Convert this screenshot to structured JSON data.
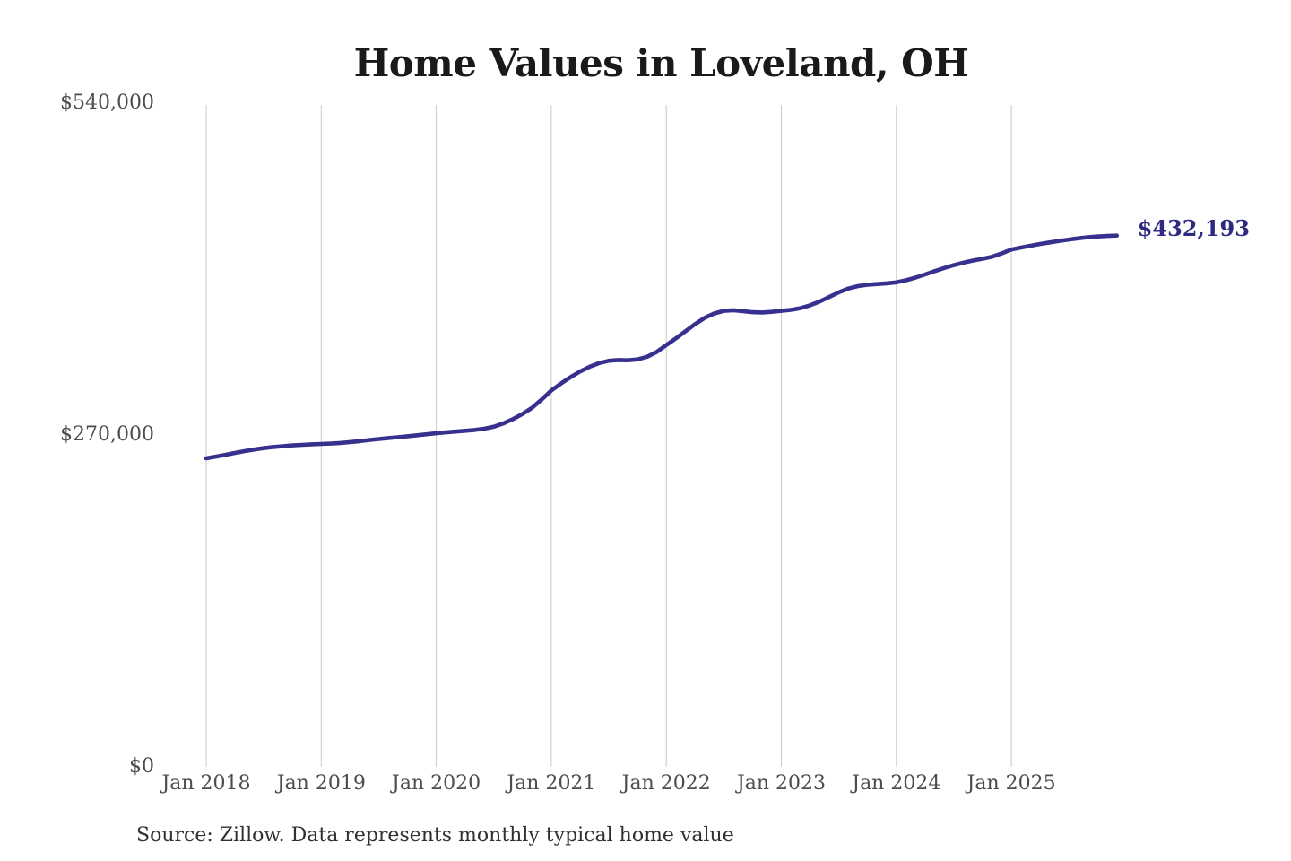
{
  "chart_data": {
    "type": "line",
    "title": "Home Values in Loveland, OH",
    "subtitle": "",
    "unit": "USD",
    "x_interval": "monthly",
    "x_start": "Jan 2018",
    "x_end": "Dec 2025",
    "ylim": [
      0,
      540000
    ],
    "grid": "vertical-only",
    "legend": "none",
    "x_tick_labels": [
      "Jan 2018",
      "Jan 2019",
      "Jan 2020",
      "Jan 2021",
      "Jan 2022",
      "Jan 2023",
      "Jan 2024",
      "Jan 2025"
    ],
    "y_ticks": [
      {
        "label": "$0",
        "value": 0
      },
      {
        "label": "$270,000",
        "value": 270000
      },
      {
        "label": "$540,000",
        "value": 540000
      }
    ],
    "series": [
      {
        "year": 2018,
        "values": [
          251000,
          252400,
          253900,
          255400,
          256900,
          258200,
          259300,
          260200,
          260900,
          261500,
          262000,
          262400
        ]
      },
      {
        "year": 2019,
        "values": [
          262700,
          263000,
          263500,
          264200,
          265000,
          265900,
          266700,
          267500,
          268200,
          269000,
          269800,
          270600
        ]
      },
      {
        "year": 2020,
        "values": [
          271400,
          272100,
          272800,
          273400,
          274100,
          275100,
          276700,
          279400,
          282900,
          287100,
          292100,
          298900
        ]
      },
      {
        "year": 2021,
        "values": [
          306200,
          311800,
          317000,
          321700,
          325500,
          328500,
          330400,
          331000,
          330800,
          331500,
          333600,
          337600
        ]
      },
      {
        "year": 2022,
        "values": [
          343100,
          348600,
          354400,
          360200,
          365300,
          368900,
          371000,
          371500,
          370800,
          369900,
          369700,
          370200
        ]
      },
      {
        "year": 2023,
        "values": [
          371000,
          371800,
          373200,
          375500,
          378600,
          382300,
          386100,
          389200,
          391100,
          392200,
          392800,
          393400
        ]
      },
      {
        "year": 2024,
        "values": [
          394200,
          395900,
          398100,
          400600,
          403300,
          405900,
          408200,
          410200,
          411900,
          413400,
          415100,
          417800
        ]
      },
      {
        "year": 2025,
        "values": [
          420900,
          422500,
          424000,
          425400,
          426700,
          427900,
          429000,
          430000,
          430900,
          431500,
          431900,
          432193
        ]
      }
    ],
    "latest_value": 432193,
    "latest_value_label": "$432,193",
    "source": "Source: Zillow. Data represents monthly typical home value",
    "line_color": "#38308f",
    "latest_label_color": "#2d2a80",
    "grid_color": "#c9c9c9",
    "title_color": "#1a1a1a",
    "axis_label_color": "#4d4d4d",
    "source_color": "#303030"
  }
}
